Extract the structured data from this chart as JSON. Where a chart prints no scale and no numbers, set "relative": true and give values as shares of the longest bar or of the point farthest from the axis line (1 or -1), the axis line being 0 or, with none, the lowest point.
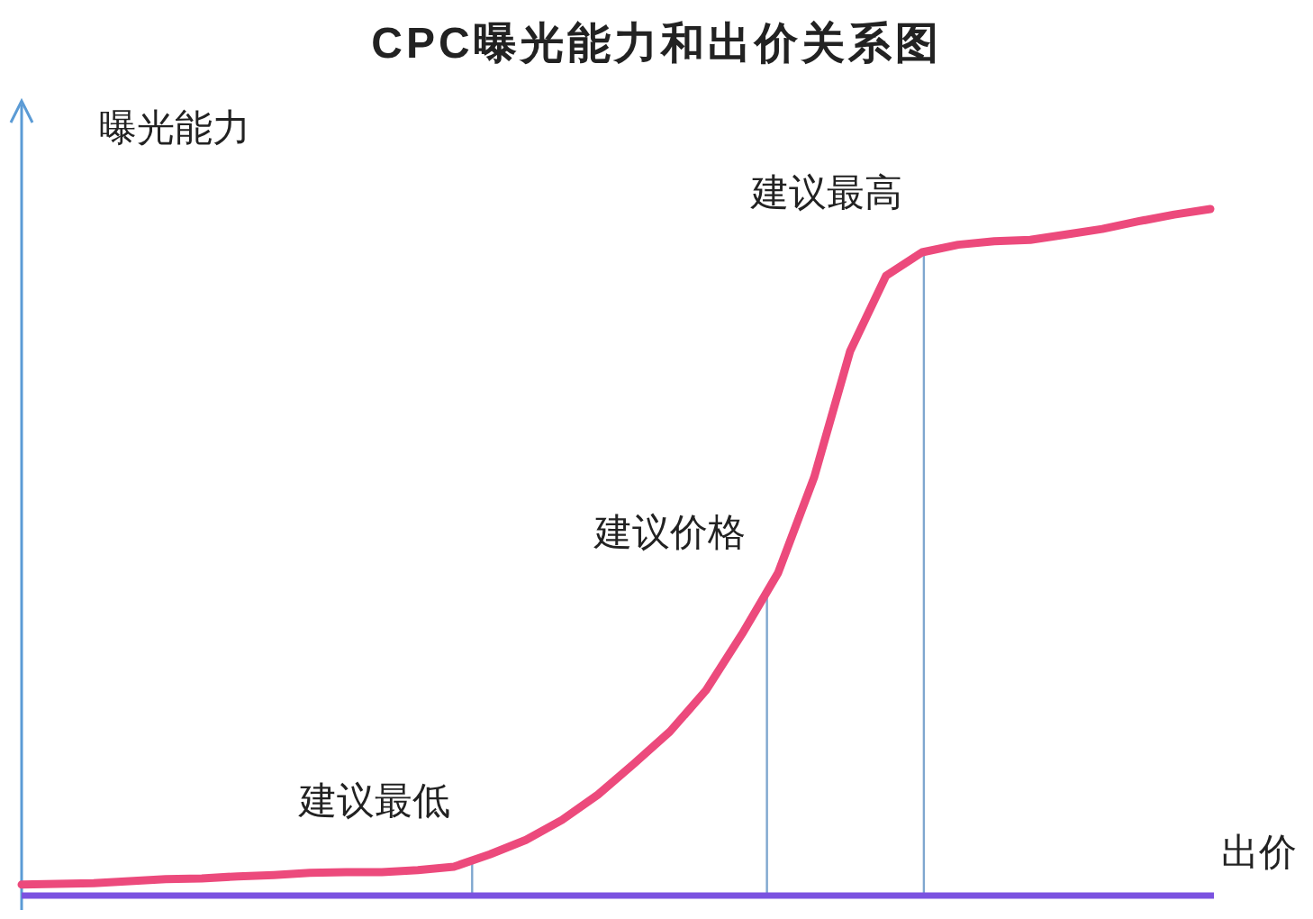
{
  "chart_data": {
    "type": "line",
    "title": "CPC曝光能力和出价关系图",
    "ylabel": "曝光能力",
    "xlabel": "出价",
    "relative": true,
    "categories": [
      null,
      null,
      null,
      null,
      null,
      null,
      null,
      null,
      null,
      null,
      null,
      null,
      null,
      null,
      null,
      null,
      null,
      null,
      null,
      null,
      null,
      null,
      null,
      null,
      null,
      null,
      null,
      null,
      null,
      null,
      null,
      null,
      null,
      null
    ],
    "series": [
      {
        "color": "#ec4a7c",
        "line_style": "solid",
        "marker": "none",
        "values": [
          0.016,
          0.017,
          0.018,
          0.021,
          0.024,
          0.025,
          0.028,
          0.03,
          0.033,
          0.034,
          0.034,
          0.037,
          0.042,
          0.06,
          0.081,
          0.11,
          0.147,
          0.192,
          0.239,
          0.299,
          0.381,
          0.47,
          0.609,
          0.793,
          0.903,
          0.937,
          0.948,
          0.953,
          0.955,
          0.963,
          0.971,
          0.982,
          0.992,
          1
        ]
      }
    ],
    "annotations": [
      "建议最低",
      "建议价格",
      "建议最高"
    ]
  }
}
